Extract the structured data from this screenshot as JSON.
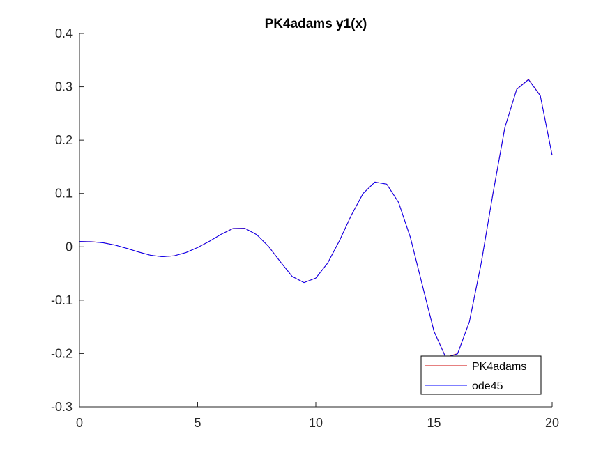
{
  "chart_data": {
    "type": "line",
    "title": "PK4adams y1(x)",
    "xlabel": "",
    "ylabel": "",
    "xlim": [
      0,
      20
    ],
    "ylim": [
      -0.3,
      0.4
    ],
    "xticks": [
      0,
      5,
      10,
      15,
      20
    ],
    "xtick_labels": [
      "0",
      "5",
      "10",
      "15",
      "20"
    ],
    "yticks": [
      -0.3,
      -0.2,
      -0.1,
      0,
      0.1,
      0.2,
      0.3,
      0.4
    ],
    "ytick_labels": [
      "-0.3",
      "-0.2",
      "-0.1",
      "0",
      "0.1",
      "0.2",
      "0.3",
      "0.4"
    ],
    "grid": false,
    "legend_position": "bottom-right",
    "series": [
      {
        "name": "PK4adams",
        "color": "#cc0000",
        "x": [
          0,
          0.5,
          1,
          1.5,
          2,
          2.5,
          3,
          3.5,
          4,
          4.5,
          5,
          5.5,
          6,
          6.5,
          7,
          7.5,
          8,
          8.5,
          9,
          9.5,
          10,
          10.5,
          11,
          11.5,
          12,
          12.5,
          13,
          13.5,
          14,
          14.5,
          15,
          15.5,
          16,
          16.5,
          17,
          17.5,
          18,
          18.5,
          19,
          19.5,
          20
        ],
        "y": [
          0.01,
          0.0096,
          0.0077,
          0.0034,
          -0.0028,
          -0.0097,
          -0.0157,
          -0.0185,
          -0.0169,
          -0.0108,
          -0.0012,
          0.0105,
          0.0237,
          0.0345,
          0.0348,
          0.0228,
          0.0008,
          -0.028,
          -0.0555,
          -0.067,
          -0.0585,
          -0.0305,
          0.0115,
          0.059,
          0.1,
          0.1215,
          0.1175,
          0.0835,
          0.018,
          -0.0705,
          -0.158,
          -0.207,
          -0.2,
          -0.14,
          -0.03,
          0.101,
          0.224,
          0.2955,
          0.314,
          0.2835,
          0.172
        ]
      },
      {
        "name": "ode45",
        "color": "#0000ff",
        "x": [
          0,
          0.5,
          1,
          1.5,
          2,
          2.5,
          3,
          3.5,
          4,
          4.5,
          5,
          5.5,
          6,
          6.5,
          7,
          7.5,
          8,
          8.5,
          9,
          9.5,
          10,
          10.5,
          11,
          11.5,
          12,
          12.5,
          13,
          13.5,
          14,
          14.5,
          15,
          15.5,
          16,
          16.5,
          17,
          17.5,
          18,
          18.5,
          19,
          19.5,
          20
        ],
        "y": [
          0.01,
          0.0095,
          0.0076,
          0.0033,
          -0.0029,
          -0.0098,
          -0.0158,
          -0.0186,
          -0.017,
          -0.0109,
          -0.0013,
          0.0104,
          0.0236,
          0.0344,
          0.0347,
          0.0227,
          0.0007,
          -0.0281,
          -0.0556,
          -0.0671,
          -0.0586,
          -0.0306,
          0.0114,
          0.0589,
          0.0999,
          0.1214,
          0.1174,
          0.0834,
          0.0179,
          -0.0706,
          -0.1585,
          -0.2075,
          -0.2005,
          -0.1405,
          -0.0305,
          0.1005,
          0.2235,
          0.295,
          0.3135,
          0.283,
          0.1715
        ]
      }
    ]
  }
}
